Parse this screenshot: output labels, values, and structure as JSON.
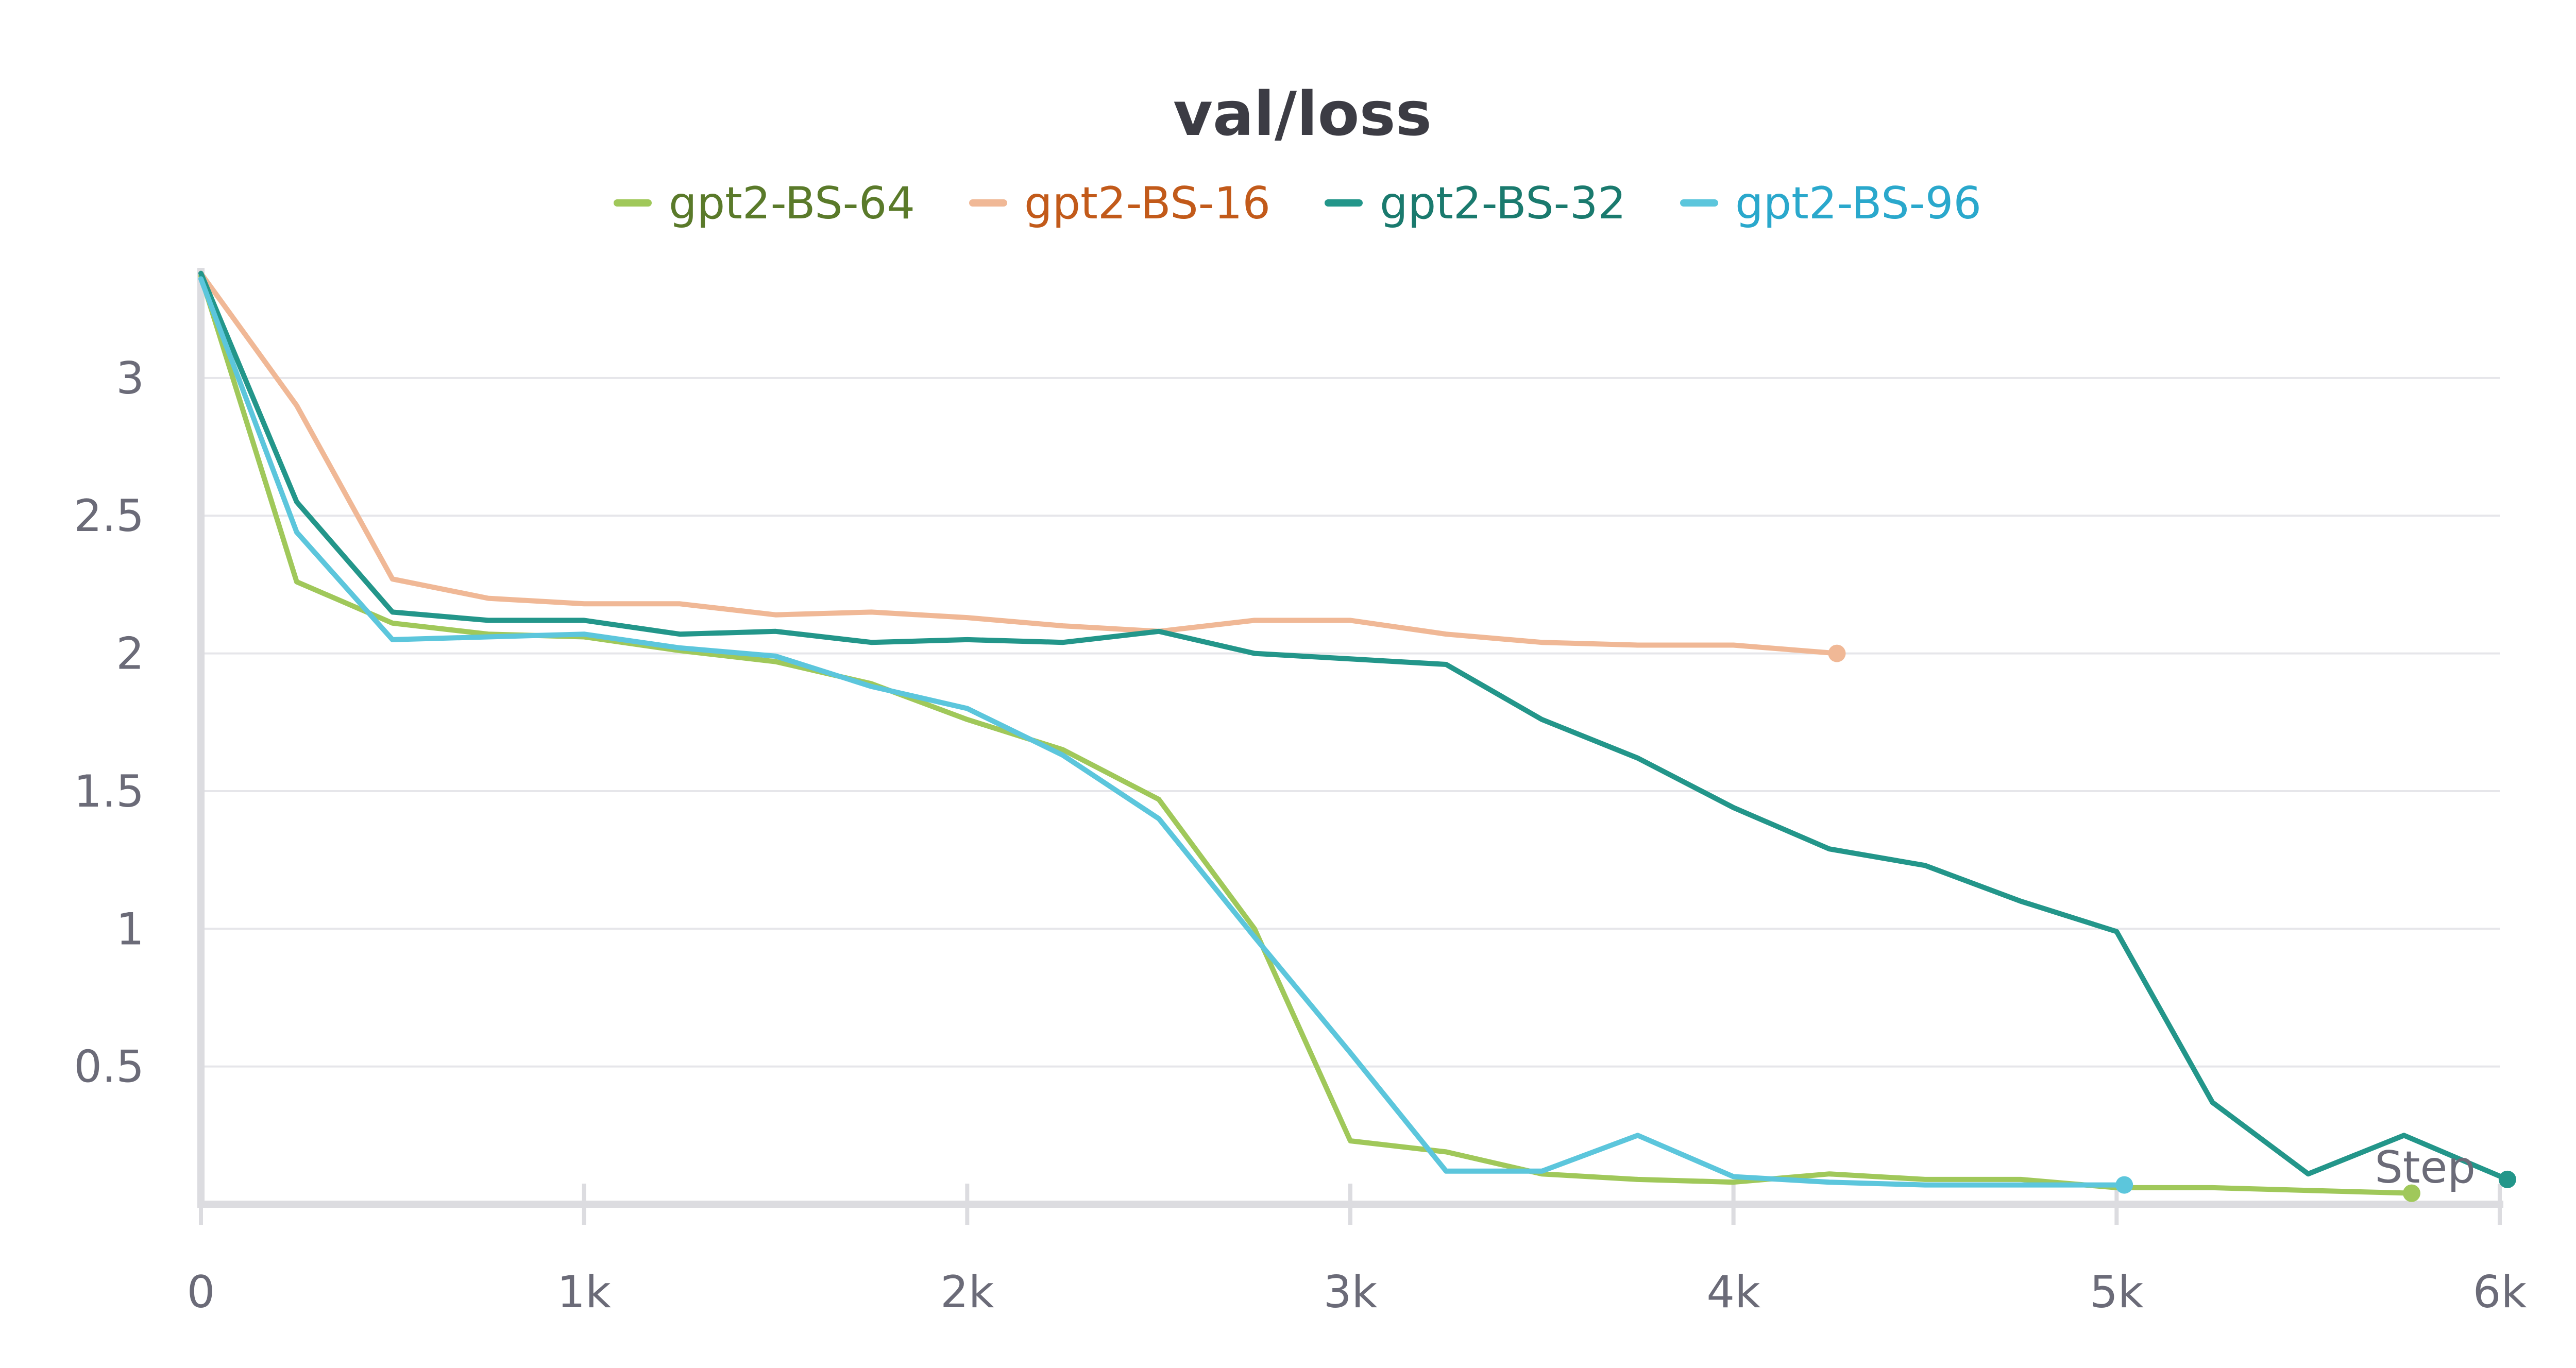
{
  "chart_data": {
    "type": "line",
    "title": "val/loss",
    "xlabel": "Step",
    "ylabel": "",
    "xlim": [
      0,
      6000
    ],
    "ylim": [
      0,
      3.4
    ],
    "x_ticks": [
      0,
      1000,
      2000,
      3000,
      4000,
      5000,
      6000
    ],
    "x_tick_labels": [
      "0",
      "1k",
      "2k",
      "3k",
      "4k",
      "5k",
      "6k"
    ],
    "y_ticks": [
      0.5,
      1,
      1.5,
      2,
      2.5,
      3
    ],
    "y_tick_labels": [
      "0.5",
      "1",
      "1.5",
      "2",
      "2.5",
      "3"
    ],
    "grid": true,
    "legend_position": "top-center",
    "series": [
      {
        "name": "gpt2-BS-64",
        "color": "#a0c85a",
        "text_color": "#5a7a2a",
        "points": [
          [
            0,
            3.37
          ],
          [
            250,
            2.26
          ],
          [
            500,
            2.11
          ],
          [
            750,
            2.07
          ],
          [
            1000,
            2.06
          ],
          [
            1250,
            2.01
          ],
          [
            1500,
            1.97
          ],
          [
            1750,
            1.89
          ],
          [
            2000,
            1.76
          ],
          [
            2250,
            1.65
          ],
          [
            2500,
            1.47
          ],
          [
            2750,
            1.0
          ],
          [
            3000,
            0.23
          ],
          [
            3250,
            0.19
          ],
          [
            3500,
            0.11
          ],
          [
            3750,
            0.09
          ],
          [
            4000,
            0.08
          ],
          [
            4250,
            0.11
          ],
          [
            4500,
            0.09
          ],
          [
            4750,
            0.09
          ],
          [
            5000,
            0.06
          ],
          [
            5250,
            0.06
          ],
          [
            5500,
            0.05
          ],
          [
            5770,
            0.04
          ]
        ]
      },
      {
        "name": "gpt2-BS-16",
        "color": "#f0b896",
        "text_color": "#c25a1a",
        "points": [
          [
            0,
            3.38
          ],
          [
            250,
            2.9
          ],
          [
            500,
            2.27
          ],
          [
            750,
            2.2
          ],
          [
            1000,
            2.18
          ],
          [
            1250,
            2.18
          ],
          [
            1500,
            2.14
          ],
          [
            1750,
            2.15
          ],
          [
            2000,
            2.13
          ],
          [
            2250,
            2.1
          ],
          [
            2500,
            2.08
          ],
          [
            2750,
            2.12
          ],
          [
            3000,
            2.12
          ],
          [
            3250,
            2.07
          ],
          [
            3500,
            2.04
          ],
          [
            3750,
            2.03
          ],
          [
            4000,
            2.03
          ],
          [
            4270,
            2.0
          ]
        ]
      },
      {
        "name": "gpt2-BS-32",
        "color": "#23968a",
        "text_color": "#1a7a6e",
        "points": [
          [
            0,
            3.38
          ],
          [
            250,
            2.55
          ],
          [
            500,
            2.15
          ],
          [
            750,
            2.12
          ],
          [
            1000,
            2.12
          ],
          [
            1250,
            2.07
          ],
          [
            1500,
            2.08
          ],
          [
            1750,
            2.04
          ],
          [
            2000,
            2.05
          ],
          [
            2250,
            2.04
          ],
          [
            2500,
            2.08
          ],
          [
            2750,
            2.0
          ],
          [
            3000,
            1.98
          ],
          [
            3250,
            1.96
          ],
          [
            3500,
            1.76
          ],
          [
            3750,
            1.62
          ],
          [
            4000,
            1.44
          ],
          [
            4250,
            1.29
          ],
          [
            4500,
            1.23
          ],
          [
            4750,
            1.1
          ],
          [
            5000,
            0.99
          ],
          [
            5250,
            0.37
          ],
          [
            5500,
            0.11
          ],
          [
            5750,
            0.25
          ],
          [
            6020,
            0.09
          ]
        ]
      },
      {
        "name": "gpt2-BS-96",
        "color": "#5cc6dc",
        "text_color": "#2aa8cc",
        "points": [
          [
            0,
            3.36
          ],
          [
            250,
            2.44
          ],
          [
            500,
            2.05
          ],
          [
            750,
            2.06
          ],
          [
            1000,
            2.07
          ],
          [
            1250,
            2.02
          ],
          [
            1500,
            1.99
          ],
          [
            1750,
            1.88
          ],
          [
            2000,
            1.8
          ],
          [
            2250,
            1.63
          ],
          [
            2500,
            1.4
          ],
          [
            2750,
            0.97
          ],
          [
            3000,
            0.55
          ],
          [
            3250,
            0.12
          ],
          [
            3500,
            0.12
          ],
          [
            3750,
            0.25
          ],
          [
            4000,
            0.1
          ],
          [
            4250,
            0.08
          ],
          [
            4500,
            0.07
          ],
          [
            4750,
            0.07
          ],
          [
            5020,
            0.07
          ]
        ]
      }
    ]
  }
}
